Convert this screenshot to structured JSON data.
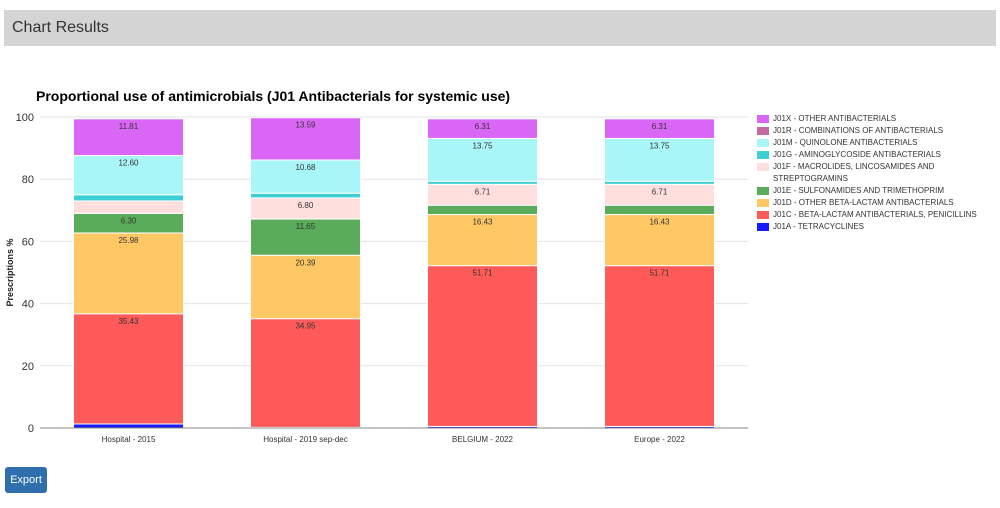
{
  "header": {
    "title": "Chart Results"
  },
  "export_label": "Export",
  "chart_data": {
    "type": "bar",
    "stacked": true,
    "title": "Proportional use of antimicrobials (J01 Antibacterials for systemic use)",
    "ylabel": "Prescriptions %",
    "xlabel": "",
    "ylim": [
      0,
      100
    ],
    "yticks": [
      0,
      20,
      40,
      60,
      80,
      100
    ],
    "grid": true,
    "legend": "right",
    "categories": [
      "Hospital - 2015",
      "Hospital - 2019 sep-dec",
      "BELGIUM - 2022",
      "Europe - 2022"
    ],
    "series": [
      {
        "name": "J01A - TETRACYCLINES",
        "color": "#1a1aff",
        "values": [
          1.3,
          0.2,
          0.5,
          0.5
        ],
        "labels": [
          "",
          "",
          "",
          ""
        ]
      },
      {
        "name": "J01C - BETA-LACTAM ANTIBACTERIALS, PENICILLINS",
        "color": "#ff5a5a",
        "values": [
          35.43,
          34.95,
          51.71,
          51.71
        ],
        "labels": [
          "35.43",
          "34.95",
          "51.71",
          "51.71"
        ]
      },
      {
        "name": "J01D - OTHER BETA-LACTAM ANTIBACTERIALS",
        "color": "#ffc864",
        "values": [
          25.98,
          20.39,
          16.43,
          16.43
        ],
        "labels": [
          "25.98",
          "20.39",
          "16.43",
          "16.43"
        ]
      },
      {
        "name": "J01E - SULFONAMIDES AND TRIMETHOPRIM",
        "color": "#5aac5a",
        "values": [
          6.3,
          11.65,
          3.0,
          3.0
        ],
        "labels": [
          "6.30",
          "11.65",
          "",
          ""
        ]
      },
      {
        "name": "J01F - MACROLIDES, LINCOSAMIDES AND STREPTOGRAMINS",
        "color": "#ffdede",
        "values": [
          4.0,
          6.8,
          6.71,
          6.71
        ],
        "labels": [
          "",
          "6.80",
          "6.71",
          "6.71"
        ]
      },
      {
        "name": "J01G - AMINOGLYCOSIDE ANTIBACTERIALS",
        "color": "#3ecfd4",
        "values": [
          2.0,
          1.5,
          1.0,
          1.0
        ],
        "labels": [
          "",
          "",
          "",
          ""
        ]
      },
      {
        "name": "J01M - QUINOLONE ANTIBACTERIALS",
        "color": "#a8f6f8",
        "values": [
          12.6,
          10.68,
          13.75,
          13.75
        ],
        "labels": [
          "12.60",
          "10.68",
          "13.75",
          "13.75"
        ]
      },
      {
        "name": "J01R - COMBINATIONS OF ANTIBACTERIALS",
        "color": "#c46aa0",
        "values": [
          0.0,
          0.0,
          0.0,
          0.0
        ],
        "labels": [
          "",
          "",
          "",
          ""
        ]
      },
      {
        "name": "J01X - OTHER ANTIBACTERIALS",
        "color": "#d966f5",
        "values": [
          11.81,
          13.59,
          6.31,
          6.31
        ],
        "labels": [
          "11.81",
          "13.59",
          "6.31",
          "6.31"
        ]
      }
    ],
    "legend_order": [
      8,
      7,
      6,
      5,
      4,
      3,
      2,
      1,
      0
    ]
  }
}
